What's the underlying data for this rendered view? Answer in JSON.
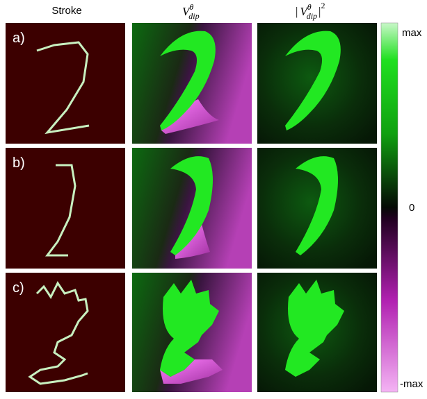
{
  "columns": {
    "stroke": "Stroke",
    "v_dip": {
      "base": "V",
      "sup": "θ",
      "sub": "dip"
    },
    "v_dip_sq": {
      "open": "|",
      "base": "V",
      "sup": "θ",
      "sub": "dip",
      "close": "|",
      "power": "2"
    }
  },
  "rows": [
    "a)",
    "b)",
    "c)"
  ],
  "colorbar": {
    "top": "max",
    "middle": "0",
    "bottom": "-max"
  }
}
